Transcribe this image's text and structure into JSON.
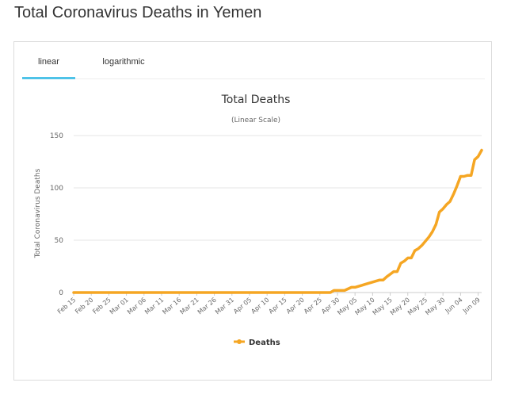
{
  "page": {
    "title": "Total Coronavirus Deaths in Yemen"
  },
  "tabs": [
    {
      "label": "linear",
      "active": true
    },
    {
      "label": "logarithmic",
      "active": false
    }
  ],
  "colors": {
    "series": "#f5a623",
    "tab_active": "#4fc3e8",
    "grid": "#e6e6e6"
  },
  "chart_data": {
    "type": "line",
    "title": "Total Deaths",
    "subtitle": "(Linear Scale)",
    "xlabel": "",
    "ylabel": "Total Coronavirus Deaths",
    "ylim": [
      0,
      150
    ],
    "yticks": [
      0,
      50,
      100,
      150
    ],
    "grid": true,
    "legend": "bottom-center",
    "tick_labels": [
      "Feb 15",
      "Feb 20",
      "Feb 25",
      "Mar 01",
      "Mar 06",
      "Mar 11",
      "Mar 16",
      "Mar 21",
      "Mar 26",
      "Mar 31",
      "Apr 05",
      "Apr 10",
      "Apr 15",
      "Apr 20",
      "Apr 25",
      "Apr 30",
      "May 05",
      "May 10",
      "May 15",
      "May 20",
      "May 25",
      "May 30",
      "Jun 04",
      "Jun 09"
    ],
    "x": [
      "Feb 15",
      "Apr 28",
      "Apr 29",
      "May 02",
      "May 04",
      "May 05",
      "May 07",
      "May 08",
      "May 10",
      "May 12",
      "May 13",
      "May 14",
      "May 16",
      "May 17",
      "May 18",
      "May 19",
      "May 20",
      "May 21",
      "May 22",
      "May 23",
      "May 24",
      "May 25",
      "May 26",
      "May 27",
      "May 28",
      "May 29",
      "May 30",
      "May 31",
      "Jun 01",
      "Jun 02",
      "Jun 03",
      "Jun 04",
      "Jun 05",
      "Jun 06",
      "Jun 07",
      "Jun 08",
      "Jun 09",
      "Jun 10"
    ],
    "series": [
      {
        "name": "Deaths",
        "values": [
          0,
          0,
          2,
          2,
          5,
          5,
          7,
          8,
          10,
          12,
          12,
          15,
          20,
          20,
          28,
          30,
          33,
          33,
          40,
          42,
          45,
          49,
          53,
          58,
          65,
          77,
          80,
          84,
          87,
          94,
          102,
          111,
          111,
          112,
          112,
          127,
          130,
          136
        ]
      }
    ]
  }
}
